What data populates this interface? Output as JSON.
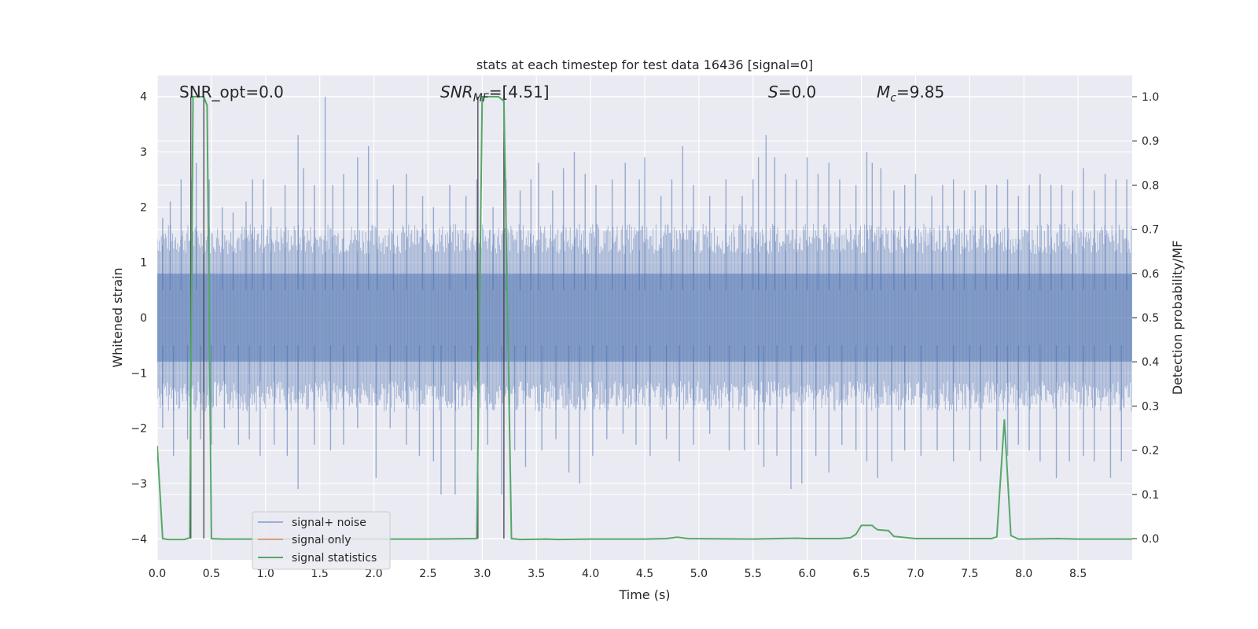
{
  "chart_data": {
    "type": "line",
    "title": "stats at each timestep for test data 16436 [signal=0]",
    "xlabel": "Time (s)",
    "ylabel": "Whitened strain",
    "y2label": "Detection probability/MF",
    "xlim": [
      0.0,
      9.0
    ],
    "ylim": [
      -4.38,
      4.38
    ],
    "y2lim": [
      -0.048,
      1.048
    ],
    "x_ticks": [
      0.0,
      0.5,
      1.0,
      1.5,
      2.0,
      2.5,
      3.0,
      3.5,
      4.0,
      4.5,
      5.0,
      5.5,
      6.0,
      6.5,
      7.0,
      7.5,
      8.0,
      8.5
    ],
    "x_tick_labels": [
      "0.0",
      "0.5",
      "1.0",
      "1.5",
      "2.0",
      "2.5",
      "3.0",
      "3.5",
      "4.0",
      "4.5",
      "5.0",
      "5.5",
      "6.0",
      "6.5",
      "7.0",
      "7.5",
      "8.0",
      "8.5"
    ],
    "y_ticks": [
      -4,
      -3,
      -2,
      -1,
      0,
      1,
      2,
      3,
      4
    ],
    "y_tick_labels": [
      "−4",
      "−3",
      "−2",
      "−1",
      "0",
      "1",
      "2",
      "3",
      "4"
    ],
    "y2_ticks": [
      0.0,
      0.1,
      0.2,
      0.3,
      0.4,
      0.5,
      0.6,
      0.7,
      0.8,
      0.9,
      1.0
    ],
    "y2_tick_labels": [
      "0.0",
      "0.1",
      "0.2",
      "0.3",
      "0.4",
      "0.5",
      "0.6",
      "0.7",
      "0.8",
      "0.9",
      "1.0"
    ],
    "grid": true,
    "legend_position": "lower-left",
    "legend": [
      {
        "name": "signal+ noise",
        "color": "#4c72b0"
      },
      {
        "name": "signal only",
        "color": "#dd8452"
      },
      {
        "name": "signal statistics",
        "color": "#55a868"
      }
    ],
    "annotations": {
      "snr_opt": "SNR_opt=0.0",
      "snr_mf_main": "SNR",
      "snr_mf_sub": "MF",
      "snr_mf_value": "=[4.51]",
      "s_main": "S",
      "s_value": "=0.0",
      "mc_main": "M",
      "mc_sub": "c",
      "mc_value": "=9.85"
    },
    "noise_series": {
      "name": "signal+ noise",
      "color": "#4c72b0",
      "core_amplitude": 0.8,
      "spikes_upper": [
        [
          0.05,
          1.8
        ],
        [
          0.12,
          2.1
        ],
        [
          0.22,
          2.5
        ],
        [
          0.32,
          2.5
        ],
        [
          0.36,
          2.8
        ],
        [
          0.48,
          2.5
        ],
        [
          0.6,
          2.0
        ],
        [
          0.7,
          1.9
        ],
        [
          0.82,
          2.1
        ],
        [
          0.88,
          2.5
        ],
        [
          0.98,
          2.5
        ],
        [
          1.05,
          2.0
        ],
        [
          1.18,
          2.4
        ],
        [
          1.3,
          3.3
        ],
        [
          1.35,
          2.7
        ],
        [
          1.45,
          2.4
        ],
        [
          1.55,
          4.0
        ],
        [
          1.62,
          2.4
        ],
        [
          1.72,
          2.6
        ],
        [
          1.85,
          2.9
        ],
        [
          1.95,
          3.1
        ],
        [
          2.03,
          2.5
        ],
        [
          2.18,
          2.4
        ],
        [
          2.3,
          2.6
        ],
        [
          2.45,
          2.2
        ],
        [
          2.55,
          2.0
        ],
        [
          2.7,
          2.4
        ],
        [
          2.85,
          2.2
        ],
        [
          2.95,
          2.5
        ],
        [
          3.1,
          2.0
        ],
        [
          3.22,
          2.5
        ],
        [
          3.35,
          2.3
        ],
        [
          3.45,
          2.5
        ],
        [
          3.52,
          2.8
        ],
        [
          3.65,
          2.3
        ],
        [
          3.75,
          2.7
        ],
        [
          3.85,
          3.0
        ],
        [
          3.95,
          2.6
        ],
        [
          4.05,
          2.4
        ],
        [
          4.2,
          2.5
        ],
        [
          4.32,
          2.8
        ],
        [
          4.45,
          2.5
        ],
        [
          4.5,
          2.9
        ],
        [
          4.65,
          2.2
        ],
        [
          4.75,
          2.5
        ],
        [
          4.85,
          3.1
        ],
        [
          4.95,
          2.4
        ],
        [
          5.1,
          2.2
        ],
        [
          5.25,
          2.5
        ],
        [
          5.4,
          2.2
        ],
        [
          5.5,
          2.5
        ],
        [
          5.55,
          2.9
        ],
        [
          5.62,
          3.3
        ],
        [
          5.7,
          2.9
        ],
        [
          5.8,
          2.6
        ],
        [
          5.9,
          2.5
        ],
        [
          6.0,
          2.9
        ],
        [
          6.1,
          2.6
        ],
        [
          6.2,
          2.8
        ],
        [
          6.3,
          2.5
        ],
        [
          6.45,
          2.4
        ],
        [
          6.55,
          3.0
        ],
        [
          6.6,
          2.8
        ],
        [
          6.68,
          2.7
        ],
        [
          6.8,
          2.3
        ],
        [
          6.9,
          2.4
        ],
        [
          7.0,
          2.6
        ],
        [
          7.15,
          2.2
        ],
        [
          7.25,
          2.4
        ],
        [
          7.35,
          2.5
        ],
        [
          7.45,
          2.3
        ],
        [
          7.55,
          2.3
        ],
        [
          7.65,
          2.4
        ],
        [
          7.75,
          2.4
        ],
        [
          7.85,
          2.5
        ],
        [
          7.95,
          2.2
        ],
        [
          8.05,
          2.4
        ],
        [
          8.15,
          2.6
        ],
        [
          8.25,
          2.4
        ],
        [
          8.35,
          2.4
        ],
        [
          8.45,
          2.3
        ],
        [
          8.55,
          2.7
        ],
        [
          8.65,
          2.3
        ],
        [
          8.75,
          2.6
        ],
        [
          8.85,
          2.5
        ],
        [
          8.95,
          2.5
        ]
      ],
      "spikes_lower": [
        [
          0.05,
          -2.0
        ],
        [
          0.15,
          -2.5
        ],
        [
          0.28,
          -2.2
        ],
        [
          0.4,
          -2.2
        ],
        [
          0.5,
          -2.3
        ],
        [
          0.62,
          -2.0
        ],
        [
          0.75,
          -2.3
        ],
        [
          0.85,
          -2.2
        ],
        [
          0.95,
          -2.5
        ],
        [
          1.08,
          -2.3
        ],
        [
          1.2,
          -2.5
        ],
        [
          1.3,
          -3.1
        ],
        [
          1.45,
          -2.3
        ],
        [
          1.6,
          -2.4
        ],
        [
          1.72,
          -2.3
        ],
        [
          1.85,
          -2.0
        ],
        [
          2.02,
          -2.9
        ],
        [
          2.15,
          -2.0
        ],
        [
          2.3,
          -2.3
        ],
        [
          2.42,
          -2.5
        ],
        [
          2.55,
          -2.6
        ],
        [
          2.62,
          -3.2
        ],
        [
          2.75,
          -3.2
        ],
        [
          2.9,
          -2.4
        ],
        [
          3.05,
          -2.3
        ],
        [
          3.18,
          -3.2
        ],
        [
          3.3,
          -2.4
        ],
        [
          3.4,
          -2.7
        ],
        [
          3.55,
          -2.4
        ],
        [
          3.68,
          -2.2
        ],
        [
          3.8,
          -2.8
        ],
        [
          3.9,
          -3.0
        ],
        [
          4.02,
          -2.5
        ],
        [
          4.15,
          -2.2
        ],
        [
          4.3,
          -2.1
        ],
        [
          4.42,
          -2.3
        ],
        [
          4.55,
          -2.5
        ],
        [
          4.7,
          -2.2
        ],
        [
          4.82,
          -2.6
        ],
        [
          4.95,
          -2.3
        ],
        [
          5.1,
          -2.1
        ],
        [
          5.28,
          -2.4
        ],
        [
          5.42,
          -2.4
        ],
        [
          5.55,
          -2.3
        ],
        [
          5.6,
          -2.7
        ],
        [
          5.72,
          -2.5
        ],
        [
          5.85,
          -3.1
        ],
        [
          5.95,
          -3.0
        ],
        [
          6.08,
          -2.5
        ],
        [
          6.2,
          -2.8
        ],
        [
          6.32,
          -2.3
        ],
        [
          6.45,
          -2.4
        ],
        [
          6.55,
          -2.6
        ],
        [
          6.65,
          -2.9
        ],
        [
          6.78,
          -2.6
        ],
        [
          6.9,
          -2.4
        ],
        [
          7.05,
          -2.5
        ],
        [
          7.2,
          -2.4
        ],
        [
          7.35,
          -2.6
        ],
        [
          7.5,
          -2.4
        ],
        [
          7.6,
          -2.6
        ],
        [
          7.75,
          -2.4
        ],
        [
          7.85,
          -2.5
        ],
        [
          7.95,
          -2.3
        ],
        [
          8.05,
          -2.4
        ],
        [
          8.15,
          -2.6
        ],
        [
          8.3,
          -2.9
        ],
        [
          8.42,
          -2.6
        ],
        [
          8.55,
          -2.5
        ],
        [
          8.65,
          -2.6
        ],
        [
          8.8,
          -2.9
        ],
        [
          8.9,
          -2.6
        ]
      ]
    },
    "stat_series": {
      "name": "signal statistics",
      "color": "#55a868",
      "x": [
        0.0,
        0.05,
        0.1,
        0.2,
        0.25,
        0.3,
        0.33,
        0.35,
        0.4,
        0.43,
        0.46,
        0.5,
        0.6,
        0.8,
        1.0,
        1.5,
        2.0,
        2.5,
        2.95,
        3.0,
        3.05,
        3.15,
        3.2,
        3.27,
        3.35,
        3.6,
        3.7,
        4.0,
        4.5,
        4.7,
        4.8,
        4.9,
        5.5,
        5.9,
        6.0,
        6.3,
        6.4,
        6.45,
        6.5,
        6.6,
        6.62,
        6.65,
        6.75,
        6.8,
        7.0,
        7.5,
        7.7,
        7.75,
        7.82,
        7.88,
        7.95,
        8.0,
        8.3,
        8.5,
        8.8,
        9.0
      ],
      "y": [
        0.21,
        0.0,
        -0.002,
        -0.002,
        -0.002,
        0.002,
        1.0,
        1.0,
        1.0,
        1.0,
        0.98,
        0.0,
        -0.001,
        -0.001,
        -0.001,
        -0.001,
        -0.001,
        -0.001,
        0.0,
        1.0,
        1.0,
        1.0,
        0.99,
        0.0,
        -0.002,
        -0.001,
        -0.002,
        -0.001,
        -0.001,
        0.0,
        0.003,
        0.0,
        -0.001,
        0.001,
        0.0,
        0.0,
        0.002,
        0.01,
        0.03,
        0.03,
        0.025,
        0.02,
        0.018,
        0.005,
        0.0,
        0.0,
        0.0,
        0.004,
        0.27,
        0.007,
        -0.001,
        -0.001,
        0.0,
        -0.001,
        -0.001,
        -0.001
      ]
    },
    "vertical_markers": {
      "color": "#444444",
      "x": [
        0.31,
        0.43,
        2.96,
        3.2
      ]
    }
  }
}
